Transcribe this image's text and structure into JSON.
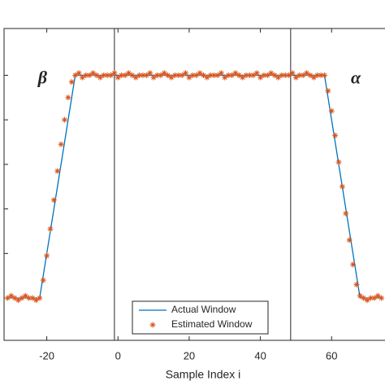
{
  "chart_data": {
    "type": "line",
    "xlabel": "Sample Index i",
    "xlim": [
      -32,
      75
    ],
    "ylim": [
      -0.19,
      1.21
    ],
    "xticks": [
      -20,
      0,
      20,
      40,
      60
    ],
    "yticks": [
      0,
      0.2,
      0.4,
      0.6,
      0.8,
      1
    ],
    "vlines": [
      -1,
      48.5
    ],
    "annotations": [
      {
        "text": "β",
        "x": -18,
        "y": 1.0
      },
      {
        "text": "α",
        "x": 70,
        "y": 1.0
      }
    ],
    "legend": "lower center",
    "x": [
      -31,
      -30,
      -29,
      -28,
      -27,
      -26,
      -25,
      -24,
      -23,
      -22,
      -21,
      -20,
      -19,
      -18,
      -17,
      -16,
      -15,
      -14,
      -13,
      -12,
      -11,
      -10,
      -9,
      -8,
      -7,
      -6,
      -5,
      -4,
      -3,
      -2,
      -1,
      0,
      1,
      2,
      3,
      4,
      5,
      6,
      7,
      8,
      9,
      10,
      11,
      12,
      13,
      14,
      15,
      16,
      17,
      18,
      19,
      20,
      21,
      22,
      23,
      24,
      25,
      26,
      27,
      28,
      29,
      30,
      31,
      32,
      33,
      34,
      35,
      36,
      37,
      38,
      39,
      40,
      41,
      42,
      43,
      44,
      45,
      46,
      47,
      48,
      49,
      50,
      51,
      52,
      53,
      54,
      55,
      56,
      57,
      58,
      59,
      60,
      61,
      62,
      63,
      64,
      65,
      66,
      67,
      68,
      69,
      70,
      71,
      72,
      73,
      74
    ],
    "series": [
      {
        "name": "Actual Window",
        "color": "#0072bd",
        "marker": "line",
        "values": [
          0,
          0,
          0,
          0,
          0,
          0,
          0,
          0,
          0,
          0,
          0.1,
          0.2,
          0.3,
          0.4,
          0.5,
          0.6,
          0.7,
          0.8,
          0.9,
          1,
          1,
          1,
          1,
          1,
          1,
          1,
          1,
          1,
          1,
          1,
          1,
          1,
          1,
          1,
          1,
          1,
          1,
          1,
          1,
          1,
          1,
          1,
          1,
          1,
          1,
          1,
          1,
          1,
          1,
          1,
          1,
          1,
          1,
          1,
          1,
          1,
          1,
          1,
          1,
          1,
          1,
          1,
          1,
          1,
          1,
          1,
          1,
          1,
          1,
          1,
          1,
          1,
          1,
          1,
          1,
          1,
          1,
          1,
          1,
          1,
          1,
          1,
          1,
          1,
          1,
          1,
          1,
          1,
          1,
          1,
          0.9,
          0.8,
          0.7,
          0.6,
          0.5,
          0.4,
          0.3,
          0.2,
          0.1,
          0,
          0,
          0,
          0,
          0,
          0,
          0
        ]
      },
      {
        "name": "Estimated Window",
        "color": "#d95319",
        "marker": "star",
        "values": [
          0,
          0.01,
          0,
          -0.01,
          0,
          0.01,
          0,
          0,
          -0.01,
          0,
          0.08,
          0.19,
          0.31,
          0.44,
          0.57,
          0.69,
          0.8,
          0.9,
          0.97,
          1,
          1.01,
          0.99,
          1,
          1,
          1.01,
          1,
          0.99,
          1,
          1,
          1,
          1.01,
          0.99,
          1,
          1,
          1.01,
          1,
          0.99,
          1,
          1,
          1,
          1.01,
          0.99,
          1,
          1,
          1.01,
          1,
          0.99,
          1,
          1,
          1,
          1.01,
          0.99,
          1,
          1,
          1.01,
          1,
          0.99,
          1,
          1,
          1,
          1.01,
          0.99,
          1,
          1,
          1.01,
          1,
          0.99,
          1,
          1,
          1,
          1.01,
          0.99,
          1,
          1,
          1.01,
          1,
          0.99,
          1,
          1,
          1,
          1.01,
          0.99,
          1,
          1,
          1.01,
          1,
          0.99,
          1,
          1,
          1,
          0.93,
          0.84,
          0.73,
          0.61,
          0.5,
          0.38,
          0.26,
          0.15,
          0.06,
          0.01,
          0,
          -0.01,
          0,
          0,
          0.01,
          0
        ]
      }
    ]
  }
}
